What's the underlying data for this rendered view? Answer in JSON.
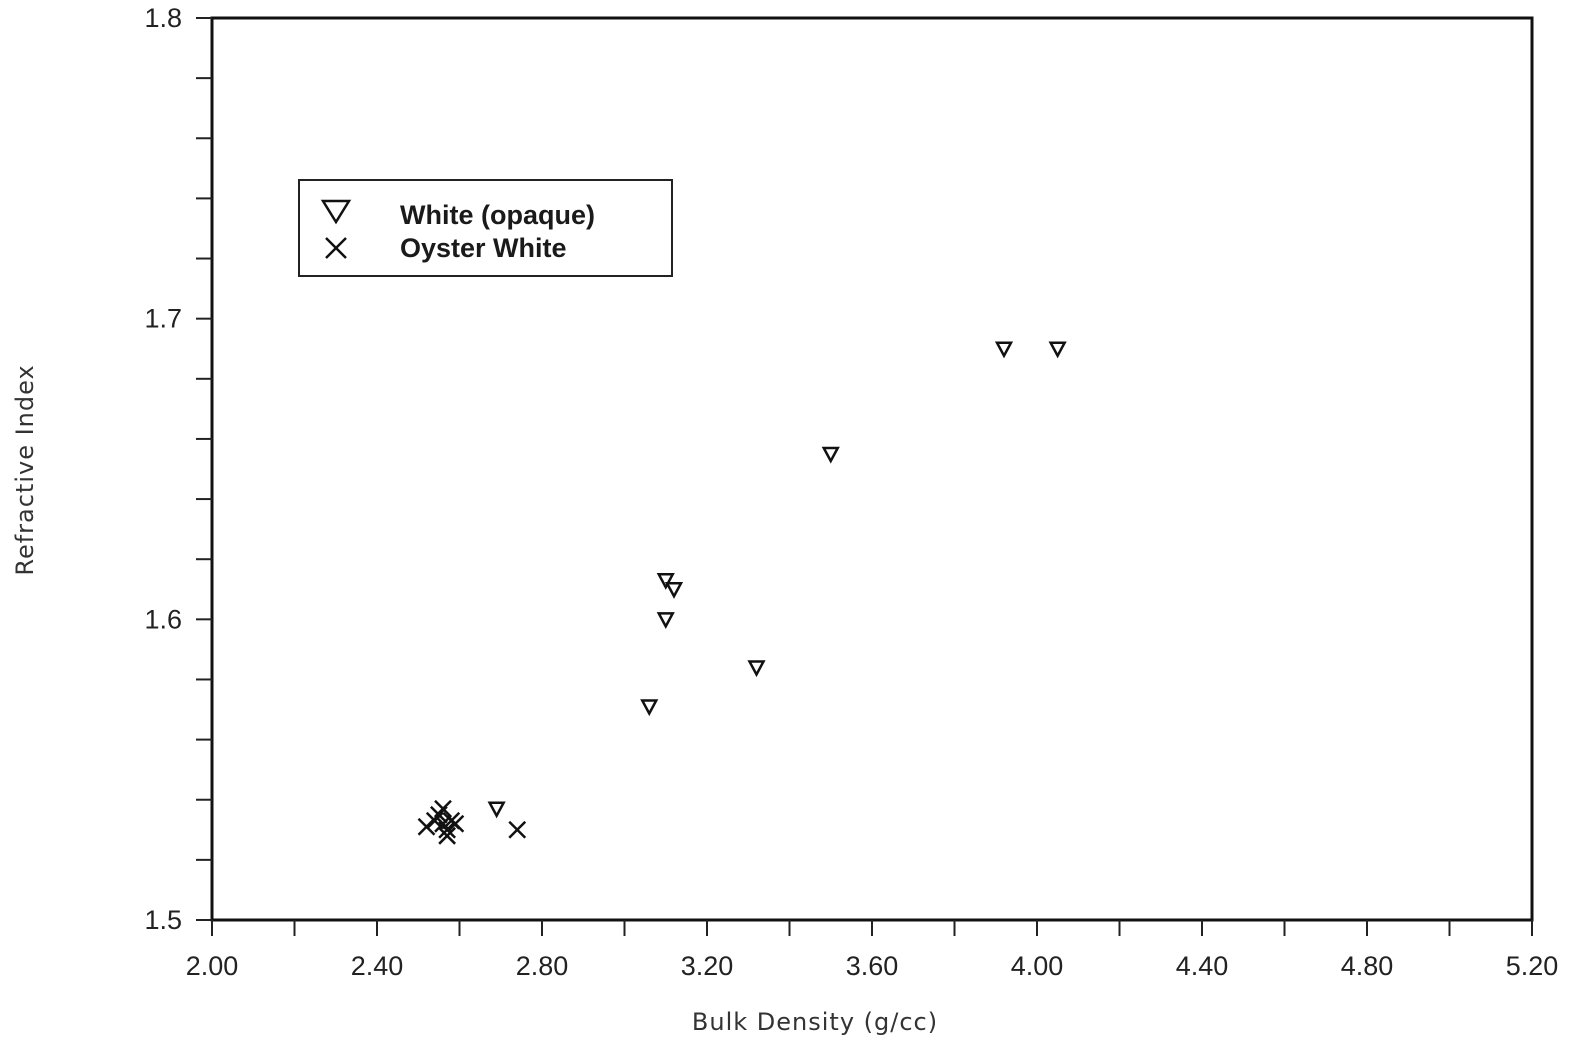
{
  "chart_data": {
    "type": "scatter",
    "title": "",
    "xlabel": "Bulk Density (g/cc)",
    "ylabel": "Refractive Index",
    "xlim": [
      2.0,
      5.2
    ],
    "ylim": [
      1.5,
      1.8
    ],
    "x_ticks": [
      "2.00",
      "2.40",
      "2.80",
      "3.20",
      "3.60",
      "4.00",
      "4.40",
      "4.80",
      "5.20"
    ],
    "y_ticks": [
      "1.5",
      "1.6",
      "1.7",
      "1.8"
    ],
    "grid": false,
    "legend_position": "top-left",
    "series": [
      {
        "name": "White (opaque)",
        "marker": "triangle-down",
        "points": [
          {
            "x": 2.69,
            "y": 1.537
          },
          {
            "x": 3.06,
            "y": 1.571
          },
          {
            "x": 3.1,
            "y": 1.6
          },
          {
            "x": 3.1,
            "y": 1.613
          },
          {
            "x": 3.12,
            "y": 1.61
          },
          {
            "x": 3.32,
            "y": 1.584
          },
          {
            "x": 3.5,
            "y": 1.655
          },
          {
            "x": 3.92,
            "y": 1.69
          },
          {
            "x": 4.05,
            "y": 1.69
          }
        ]
      },
      {
        "name": "Oyster White",
        "marker": "x",
        "points": [
          {
            "x": 2.52,
            "y": 1.531
          },
          {
            "x": 2.54,
            "y": 1.533
          },
          {
            "x": 2.55,
            "y": 1.535
          },
          {
            "x": 2.56,
            "y": 1.537
          },
          {
            "x": 2.56,
            "y": 1.532
          },
          {
            "x": 2.57,
            "y": 1.53
          },
          {
            "x": 2.57,
            "y": 1.528
          },
          {
            "x": 2.58,
            "y": 1.533
          },
          {
            "x": 2.59,
            "y": 1.532
          },
          {
            "x": 2.74,
            "y": 1.53
          }
        ]
      }
    ]
  }
}
